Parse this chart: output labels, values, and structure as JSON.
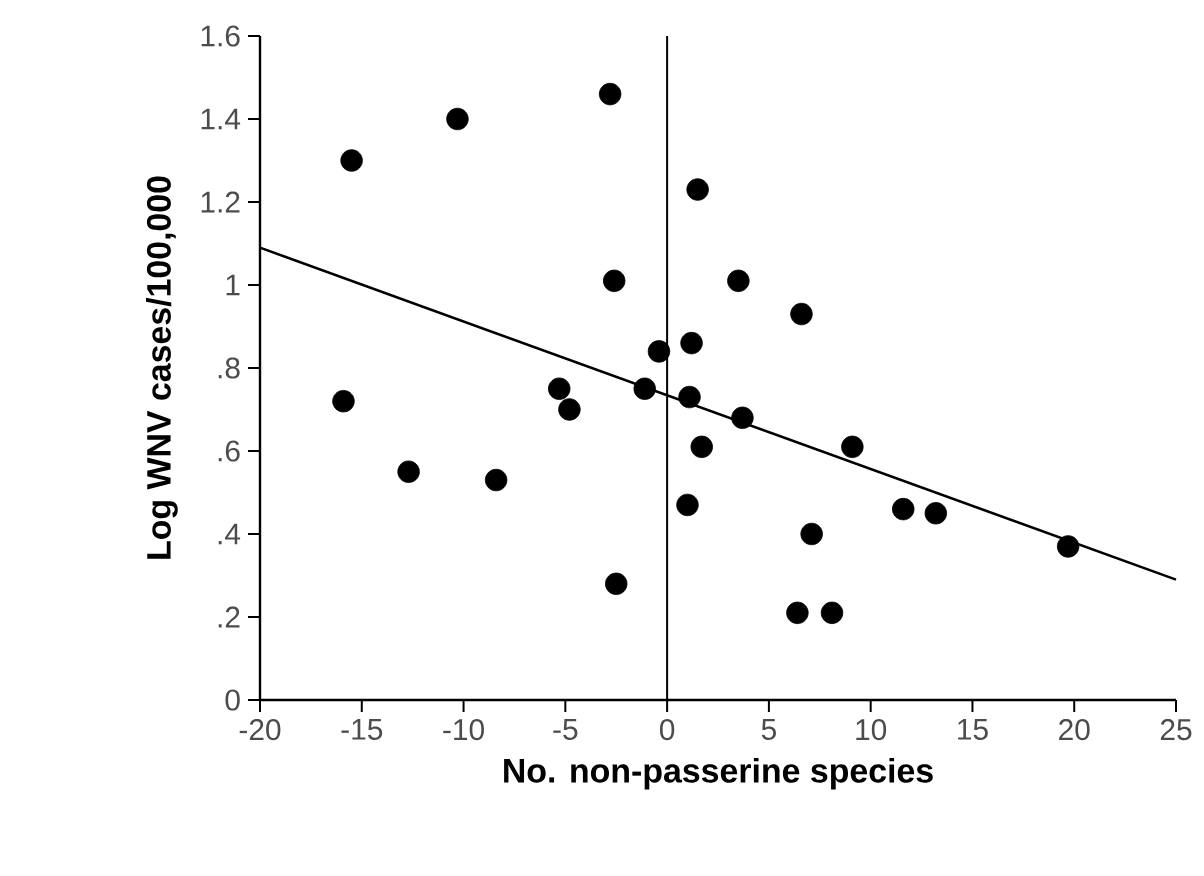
{
  "chart_data": {
    "type": "scatter",
    "xlabel": "No. non-passerine species",
    "ylabel": "Log WNV cases/100,000",
    "xlim": [
      -20,
      25
    ],
    "xticks": [
      -20,
      -15,
      -10,
      -5,
      0,
      5,
      10,
      15,
      20,
      25
    ],
    "ylim": [
      0,
      1.6
    ],
    "yticks": [
      0,
      {
        "value": 0.2,
        "label": ".2"
      },
      {
        "value": 0.4,
        "label": ".4"
      },
      {
        "value": 0.6,
        "label": ".6"
      },
      {
        "value": 0.8,
        "label": ".8"
      },
      1,
      {
        "value": 1.2,
        "label": "1.2"
      },
      {
        "value": 1.4,
        "label": "1.4"
      },
      {
        "value": 1.6,
        "label": "1.6"
      }
    ],
    "grid": false,
    "ref_lines": [
      {
        "axis": "x",
        "value": 0,
        "color": "#000000"
      }
    ],
    "series": [
      {
        "color": "#000000",
        "x": [
          -15.5,
          -10.3,
          -2.8,
          -2.6,
          -15.9,
          -12.7,
          -8.4,
          -5.3,
          -4.8,
          -2.5,
          -1.1,
          -0.4,
          1.2,
          1.1,
          1.7,
          1.0,
          1.5,
          3.5,
          6.6,
          3.7,
          9.1,
          11.6,
          13.2,
          7.1,
          6.4,
          8.1,
          19.7
        ],
        "values": [
          1.3,
          1.4,
          1.46,
          1.01,
          0.72,
          0.55,
          0.53,
          0.75,
          0.7,
          0.28,
          0.75,
          0.84,
          0.86,
          0.73,
          0.61,
          0.47,
          1.23,
          1.01,
          0.93,
          0.68,
          0.61,
          0.46,
          0.45,
          0.4,
          0.21,
          0.21,
          0.37
        ]
      },
      {
        "type": "line",
        "color": "#000000",
        "x": [
          -20,
          25
        ],
        "values": [
          1.09,
          0.29
        ]
      }
    ]
  }
}
